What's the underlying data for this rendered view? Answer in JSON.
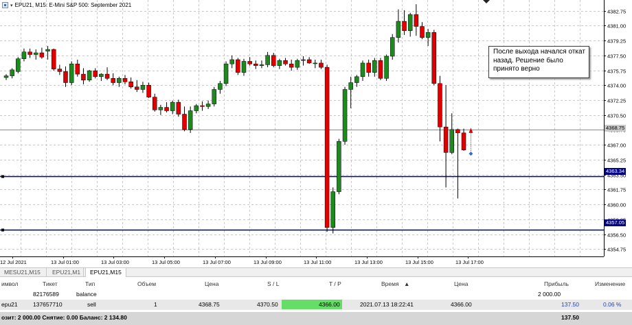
{
  "chart": {
    "title": "EPU21, M15:  E-Mini S&P 500: September 2021",
    "annotation": "После выхода начался откат назад. Решение было принято верно",
    "current_price_label": "4368.75",
    "level_high_label": "4363.34",
    "level_low_label": "4357.05",
    "colors": {
      "bull": "#1e8a1e",
      "bear": "#e00000",
      "level_line": "#000080",
      "grid": "#c8c8c8"
    }
  },
  "chart_data": {
    "type": "candlestick",
    "y_axis": {
      "ticks": [
        "4382.75",
        "4381.00",
        "4379.25",
        "4377.50",
        "4375.75",
        "4374.00",
        "4372.25",
        "4370.50",
        "4368.75",
        "4367.00",
        "4365.25",
        "4363.50",
        "4361.75",
        "4360.00",
        "4358.25",
        "4356.50",
        "4354.75"
      ],
      "range": [
        4353.9,
        4384.0
      ]
    },
    "x_axis": {
      "ticks": [
        "12 Jul 2021",
        "13 Jul 01:00",
        "13 Jul 03:00",
        "13 Jul 05:00",
        "13 Jul 07:00",
        "13 Jul 09:00",
        "13 Jul 11:00",
        "13 Jul 13:00",
        "13 Jul 15:00",
        "13 Jul 17:00"
      ]
    },
    "horizontal_levels": [
      4363.34,
      4357.05
    ],
    "current_price": 4368.75,
    "ohlc": [
      [
        4374.9,
        4375.3,
        4374.6,
        4375.1
      ],
      [
        4375.1,
        4376.0,
        4374.8,
        4375.8
      ],
      [
        4375.6,
        4377.3,
        4375.4,
        4377.1
      ],
      [
        4377.1,
        4378.3,
        4376.8,
        4377.9
      ],
      [
        4377.9,
        4378.3,
        4377.2,
        4377.6
      ],
      [
        4377.6,
        4378.2,
        4377.0,
        4377.8
      ],
      [
        4377.8,
        4378.4,
        4377.1,
        4377.3
      ],
      [
        4378.0,
        4378.6,
        4377.0,
        4378.2
      ],
      [
        4378.2,
        4378.3,
        4375.7,
        4375.9
      ],
      [
        4375.9,
        4376.4,
        4375.2,
        4375.6
      ],
      [
        4375.6,
        4376.2,
        4373.8,
        4374.3
      ],
      [
        4374.3,
        4376.8,
        4374.0,
        4376.5
      ],
      [
        4376.5,
        4377.0,
        4375.0,
        4375.3
      ],
      [
        4375.3,
        4376.0,
        4374.1,
        4374.6
      ],
      [
        4374.6,
        4375.8,
        4374.4,
        4375.7
      ],
      [
        4375.7,
        4376.0,
        4374.8,
        4375.0
      ],
      [
        4375.0,
        4375.4,
        4374.5,
        4375.3
      ],
      [
        4375.3,
        4376.1,
        4374.6,
        4374.8
      ],
      [
        4374.8,
        4375.4,
        4374.0,
        4374.3
      ],
      [
        4374.3,
        4375.0,
        4373.8,
        4374.8
      ],
      [
        4374.8,
        4375.2,
        4374.1,
        4374.4
      ],
      [
        4374.4,
        4374.9,
        4373.6,
        4373.8
      ],
      [
        4373.8,
        4374.6,
        4373.2,
        4373.5
      ],
      [
        4373.5,
        4374.4,
        4373.1,
        4374.0
      ],
      [
        4374.0,
        4374.3,
        4372.5,
        4372.6
      ],
      [
        4372.6,
        4373.0,
        4370.9,
        4371.1
      ],
      [
        4371.1,
        4371.7,
        4370.5,
        4371.4
      ],
      [
        4371.4,
        4372.0,
        4370.8,
        4371.0
      ],
      [
        4371.0,
        4372.2,
        4370.6,
        4372.0
      ],
      [
        4372.0,
        4372.3,
        4370.3,
        4370.6
      ],
      [
        4370.6,
        4371.5,
        4368.6,
        4368.8
      ],
      [
        4368.8,
        4371.5,
        4368.4,
        4371.0
      ],
      [
        4371.0,
        4371.8,
        4370.7,
        4371.6
      ],
      [
        4371.6,
        4372.1,
        4371.0,
        4371.5
      ],
      [
        4371.5,
        4372.2,
        4371.2,
        4371.8
      ],
      [
        4371.8,
        4373.8,
        4371.5,
        4373.5
      ],
      [
        4373.5,
        4374.5,
        4373.0,
        4374.2
      ],
      [
        4374.2,
        4376.8,
        4373.9,
        4376.5
      ],
      [
        4376.5,
        4377.5,
        4376.0,
        4377.0
      ],
      [
        4377.0,
        4377.2,
        4375.2,
        4375.5
      ],
      [
        4375.5,
        4377.1,
        4375.1,
        4376.8
      ],
      [
        4376.8,
        4377.3,
        4376.3,
        4376.5
      ],
      [
        4376.5,
        4376.9,
        4375.9,
        4376.3
      ],
      [
        4376.3,
        4376.9,
        4376.0,
        4376.4
      ],
      [
        4376.4,
        4377.9,
        4376.1,
        4377.5
      ],
      [
        4377.5,
        4377.8,
        4376.1,
        4376.3
      ],
      [
        4376.3,
        4377.1,
        4375.9,
        4376.9
      ],
      [
        4376.9,
        4377.2,
        4376.3,
        4376.5
      ],
      [
        4376.5,
        4377.0,
        4375.7,
        4376.1
      ],
      [
        4376.1,
        4377.1,
        4375.8,
        4376.9
      ],
      [
        4376.9,
        4377.4,
        4376.3,
        4377.0
      ],
      [
        4377.0,
        4377.3,
        4376.5,
        4376.6
      ],
      [
        4376.6,
        4377.0,
        4376.0,
        4376.6
      ],
      [
        4376.6,
        4377.0,
        4375.9,
        4376.1
      ],
      [
        4376.1,
        4376.4,
        4356.8,
        4357.3
      ],
      [
        4357.3,
        4362.0,
        4356.6,
        4361.5
      ],
      [
        4361.5,
        4367.7,
        4361.2,
        4367.4
      ],
      [
        4367.4,
        4373.8,
        4367.0,
        4373.5
      ],
      [
        4373.5,
        4375.0,
        4371.3,
        4374.3
      ],
      [
        4374.3,
        4375.2,
        4373.8,
        4375.0
      ],
      [
        4375.0,
        4376.9,
        4374.5,
        4376.6
      ],
      [
        4376.6,
        4377.0,
        4375.0,
        4375.5
      ],
      [
        4375.5,
        4377.2,
        4375.0,
        4376.9
      ],
      [
        4376.9,
        4377.2,
        4374.6,
        4374.8
      ],
      [
        4374.8,
        4377.6,
        4374.5,
        4377.4
      ],
      [
        4377.4,
        4380.0,
        4377.0,
        4379.6
      ],
      [
        4379.6,
        4382.9,
        4379.0,
        4381.5
      ],
      [
        4381.5,
        4382.8,
        4379.9,
        4380.4
      ],
      [
        4380.4,
        4382.5,
        4379.7,
        4382.3
      ],
      [
        4382.3,
        4383.5,
        4379.8,
        4380.9
      ],
      [
        4380.9,
        4381.4,
        4379.4,
        4379.6
      ],
      [
        4379.6,
        4380.6,
        4378.6,
        4380.2
      ],
      [
        4380.2,
        4380.5,
        4374.0,
        4374.2
      ],
      [
        4374.2,
        4375.1,
        4367.4,
        4369.1
      ],
      [
        4369.1,
        4374.0,
        4362.0,
        4366.1
      ],
      [
        4366.1,
        4370.7,
        4365.9,
        4368.8
      ],
      [
        4368.8,
        4368.9,
        4360.7,
        4368.4
      ],
      [
        4368.4,
        4368.9,
        4366.3,
        4366.4
      ]
    ]
  },
  "terminal": {
    "tabs": [
      "MESU21,M15",
      "EPU21,M1",
      "EPU21,M15"
    ],
    "active_tab": 2,
    "columns": [
      "имвол",
      "Тикет",
      "Тип",
      "Объем",
      "Цена",
      "S / L",
      "T / P",
      "Время",
      "Цена",
      "Прибыль",
      "Изменение"
    ],
    "sort_arrow": "▲",
    "balance_row": {
      "ticket": "82176589",
      "type": "balance",
      "profit": "2 000.00"
    },
    "position_row": {
      "symbol": "epu21",
      "ticket": "137657710",
      "type": "sell",
      "volume": "1",
      "price": "4368.75",
      "sl": "4370.50",
      "tp": "4366.00",
      "time": "2021.07.13 18:22:41",
      "current_price": "4366.00",
      "profit": "137.50",
      "change": "0.06 %"
    },
    "status": "озит: 2 000.00  Снятие: 0.00  Баланс: 2 134.80",
    "status_profit": "137.50"
  }
}
